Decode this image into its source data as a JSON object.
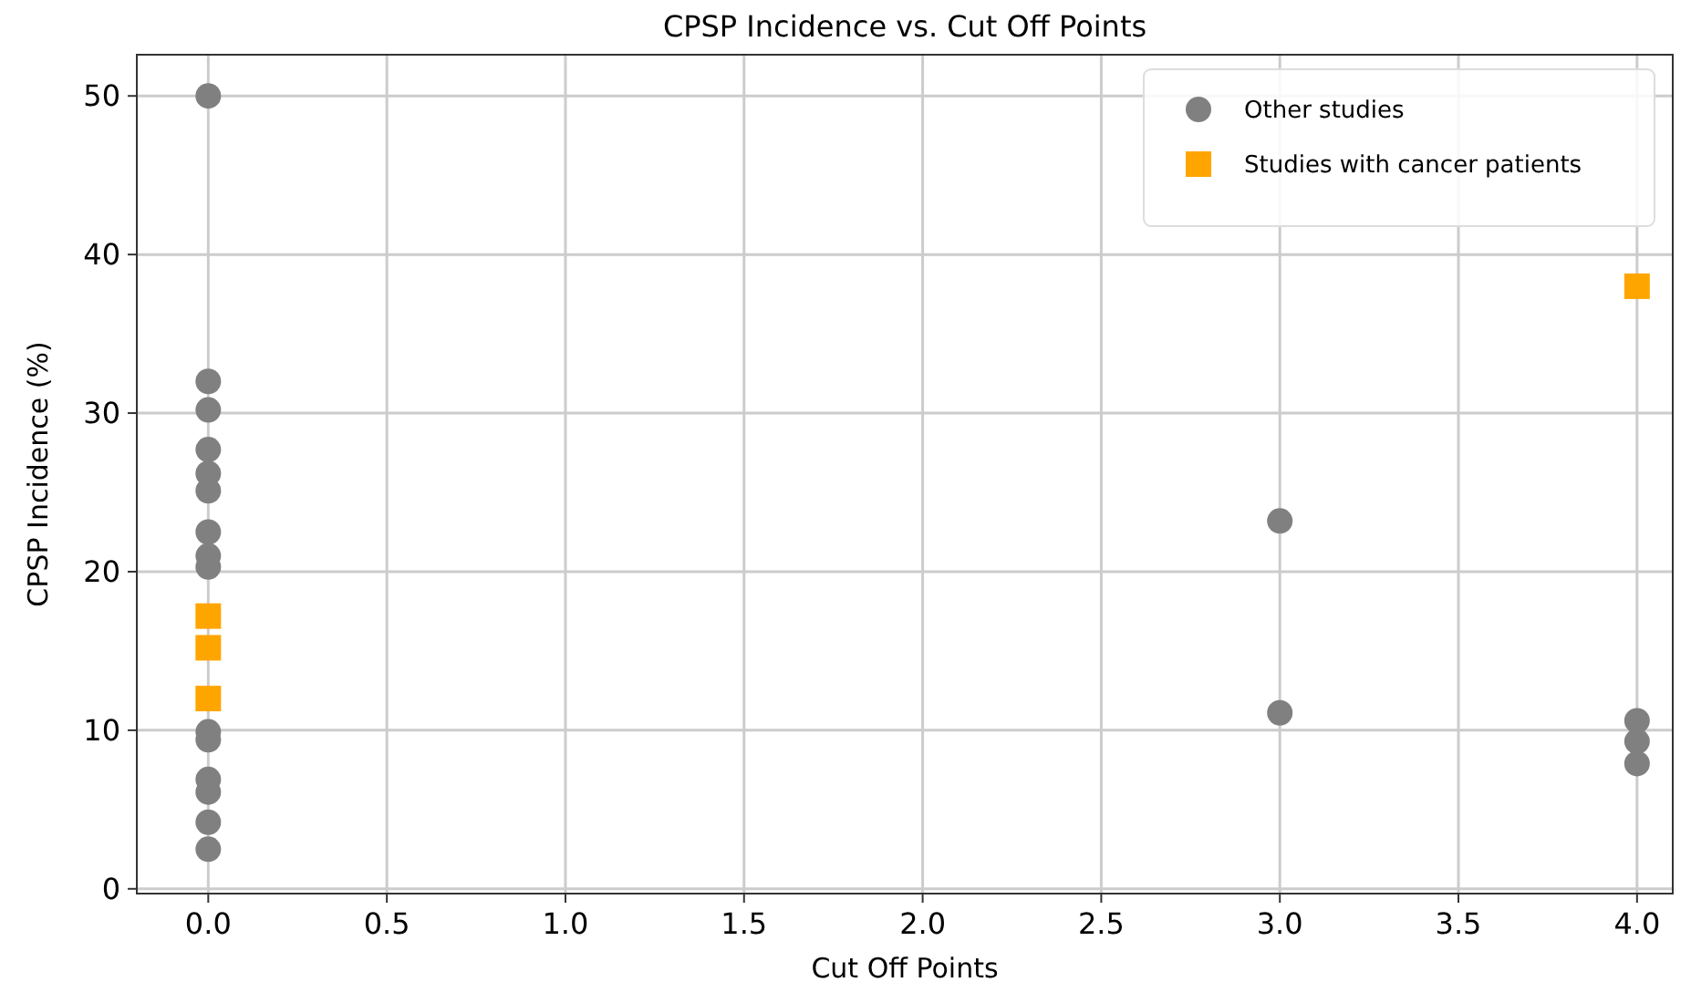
{
  "chart_data": {
    "type": "scatter",
    "title": "CPSP Incidence vs. Cut Off Points",
    "xlabel": "Cut Off Points",
    "ylabel": "CPSP Incidence (%)",
    "series": [
      {
        "name": "Other studies",
        "color": "#808080",
        "marker": "circle",
        "x": [
          0,
          0,
          0,
          0,
          0,
          0,
          0,
          0,
          0,
          0,
          0,
          0,
          0,
          0,
          0,
          3,
          3,
          4,
          4,
          4
        ],
        "values": [
          50,
          32,
          30.2,
          27.7,
          26.2,
          25.1,
          22.5,
          21,
          20.3,
          9.9,
          9.4,
          6.9,
          6.1,
          4.2,
          2.5,
          23.2,
          11.1,
          10.6,
          9.3,
          7.9
        ]
      },
      {
        "name": "Studies with cancer patients",
        "color": "#ffa500",
        "marker": "square",
        "x": [
          0,
          0,
          0,
          4
        ],
        "values": [
          17.2,
          15.2,
          12,
          38
        ]
      }
    ],
    "xlim": [
      -0.2,
      4.1
    ],
    "xticks": [
      {
        "value": 0,
        "label": "0.0"
      },
      {
        "value": 0.5,
        "label": "0.5"
      },
      {
        "value": 1,
        "label": "1.0"
      },
      {
        "value": 1.5,
        "label": "1.5"
      },
      {
        "value": 2,
        "label": "2.0"
      },
      {
        "value": 2.5,
        "label": "2.5"
      },
      {
        "value": 3,
        "label": "3.0"
      },
      {
        "value": 3.5,
        "label": "3.5"
      },
      {
        "value": 4,
        "label": "4.0"
      }
    ],
    "ylim": [
      -0.3,
      52.6
    ],
    "yticks": [
      0,
      10,
      20,
      30,
      40,
      50
    ],
    "grid": true,
    "legend": "top right"
  }
}
